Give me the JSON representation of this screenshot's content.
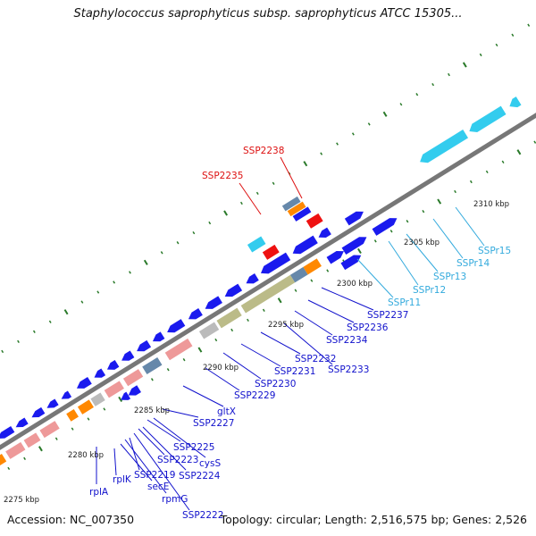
{
  "title": "Staphylococcus saprophyticus subsp. saprophyticus ATCC 15305...",
  "footer": {
    "accession": "Accession: NC_007350",
    "info": "Topology: circular; Length: 2,516,575 bp; Genes: 2,526"
  },
  "colors": {
    "cds": "#1a1aee",
    "cds_light": "#33ccee",
    "rrna": "#ee1111",
    "pink": "#ee9999",
    "orange": "#ff8800",
    "olive": "#bbbb88",
    "gray": "#bbbbbb",
    "slate": "#6688aa",
    "backbone": "#777777",
    "tick": "#2a7a2a",
    "label_blue": "#1111cc",
    "label_cyan": "#33aadd",
    "label_red": "#dd1111"
  },
  "kbp_labels": [
    "2275 kbp",
    "2280 kbp",
    "2285 kbp",
    "2290 kbp",
    "2295 kbp",
    "2300 kbp",
    "2305 kbp",
    "2310 kbp"
  ],
  "gene_labels": {
    "blue": [
      "rplA",
      "rplK",
      "secE",
      "rpmG",
      "SSP2219",
      "SSP2222",
      "SSP2223",
      "SSP2224",
      "SSP2225",
      "cysS",
      "SSP2227",
      "gltX",
      "SSP2229",
      "SSP2230",
      "SSP2231",
      "SSP2232",
      "SSP2233",
      "SSP2234",
      "SSP2236",
      "SSP2237"
    ],
    "cyan": [
      "SSPr11",
      "SSPr12",
      "SSPr13",
      "SSPr14",
      "SSPr15"
    ],
    "red": [
      "SSP2235",
      "SSP2238"
    ]
  }
}
